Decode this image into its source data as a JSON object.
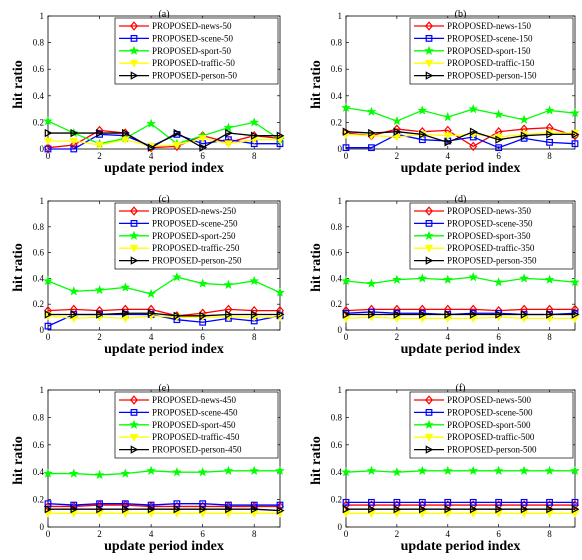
{
  "chart_data": [
    {
      "type": "line",
      "title": "(a)",
      "xlabel": "update period index",
      "ylabel": "hit ratio",
      "xlim": [
        0,
        9
      ],
      "ylim": [
        0,
        1
      ],
      "xticks": [
        0,
        2,
        4,
        6,
        8
      ],
      "yticks": [
        0,
        0.2,
        0.4,
        0.6,
        0.8,
        1
      ],
      "legend_position": "top-right",
      "x": [
        0,
        1,
        2,
        3,
        4,
        5,
        6,
        7,
        8,
        9
      ],
      "series": [
        {
          "name": "PROPOSED-news-50",
          "color": "#ff0000",
          "marker": "diamond",
          "values": [
            0.01,
            0.03,
            0.14,
            0.12,
            0.01,
            0.02,
            0.1,
            0.05,
            0.1,
            0.08
          ]
        },
        {
          "name": "PROPOSED-scene-50",
          "color": "#0000ff",
          "marker": "square",
          "values": [
            0.0,
            0.0,
            0.11,
            0.1,
            0.02,
            0.11,
            0.04,
            0.07,
            0.04,
            0.04
          ]
        },
        {
          "name": "PROPOSED-sport-50",
          "color": "#00ff00",
          "marker": "star",
          "values": [
            0.21,
            0.12,
            0.04,
            0.08,
            0.19,
            0.04,
            0.1,
            0.16,
            0.2,
            0.07
          ]
        },
        {
          "name": "PROPOSED-traffic-50",
          "color": "#ffff00",
          "marker": "triangle-down",
          "values": [
            0.06,
            0.06,
            0.03,
            0.07,
            0.02,
            0.03,
            0.08,
            0.04,
            0.07,
            0.07
          ]
        },
        {
          "name": "PROPOSED-person-50",
          "color": "#000000",
          "marker": "triangle-right",
          "values": [
            0.12,
            0.12,
            0.12,
            0.12,
            0.01,
            0.12,
            0.01,
            0.12,
            0.1,
            0.1
          ]
        }
      ]
    },
    {
      "type": "line",
      "title": "(b)",
      "xlabel": "update period index",
      "ylabel": "hit ratio",
      "xlim": [
        0,
        9
      ],
      "ylim": [
        0,
        1
      ],
      "xticks": [
        0,
        2,
        4,
        6,
        8
      ],
      "yticks": [
        0,
        0.2,
        0.4,
        0.6,
        0.8,
        1
      ],
      "legend_position": "top-right",
      "x": [
        0,
        1,
        2,
        3,
        4,
        5,
        6,
        7,
        8,
        9
      ],
      "series": [
        {
          "name": "PROPOSED-news-150",
          "color": "#ff0000",
          "marker": "diamond",
          "values": [
            0.12,
            0.1,
            0.15,
            0.13,
            0.14,
            0.02,
            0.13,
            0.15,
            0.16,
            0.1
          ]
        },
        {
          "name": "PROPOSED-scene-150",
          "color": "#0000ff",
          "marker": "square",
          "values": [
            0.01,
            0.01,
            0.11,
            0.07,
            0.06,
            0.09,
            0.01,
            0.08,
            0.05,
            0.04
          ]
        },
        {
          "name": "PROPOSED-sport-150",
          "color": "#00ff00",
          "marker": "star",
          "values": [
            0.31,
            0.28,
            0.21,
            0.29,
            0.24,
            0.3,
            0.26,
            0.22,
            0.29,
            0.27
          ]
        },
        {
          "name": "PROPOSED-traffic-150",
          "color": "#ffff00",
          "marker": "triangle-down",
          "values": [
            0.11,
            0.1,
            0.09,
            0.11,
            0.1,
            0.11,
            0.09,
            0.11,
            0.12,
            0.12
          ]
        },
        {
          "name": "PROPOSED-person-150",
          "color": "#000000",
          "marker": "triangle-right",
          "values": [
            0.13,
            0.12,
            0.13,
            0.11,
            0.05,
            0.13,
            0.07,
            0.1,
            0.11,
            0.11
          ]
        }
      ]
    },
    {
      "type": "line",
      "title": "(c)",
      "xlabel": "update period index",
      "ylabel": "hit ratio",
      "xlim": [
        0,
        9
      ],
      "ylim": [
        0,
        1
      ],
      "xticks": [
        0,
        2,
        4,
        6,
        8
      ],
      "yticks": [
        0,
        0.2,
        0.4,
        0.6,
        0.8,
        1
      ],
      "legend_position": "top-right",
      "x": [
        0,
        1,
        2,
        3,
        4,
        5,
        6,
        7,
        8,
        9
      ],
      "series": [
        {
          "name": "PROPOSED-news-250",
          "color": "#ff0000",
          "marker": "diamond",
          "values": [
            0.15,
            0.16,
            0.15,
            0.16,
            0.16,
            0.11,
            0.13,
            0.16,
            0.15,
            0.15
          ]
        },
        {
          "name": "PROPOSED-scene-250",
          "color": "#0000ff",
          "marker": "square",
          "values": [
            0.03,
            0.12,
            0.12,
            0.12,
            0.12,
            0.08,
            0.06,
            0.09,
            0.07,
            0.11
          ]
        },
        {
          "name": "PROPOSED-sport-250",
          "color": "#00ff00",
          "marker": "star",
          "values": [
            0.38,
            0.3,
            0.31,
            0.33,
            0.28,
            0.41,
            0.36,
            0.35,
            0.38,
            0.29
          ]
        },
        {
          "name": "PROPOSED-traffic-250",
          "color": "#ffff00",
          "marker": "triangle-down",
          "values": [
            0.11,
            0.09,
            0.1,
            0.09,
            0.11,
            0.1,
            0.1,
            0.1,
            0.1,
            0.1
          ]
        },
        {
          "name": "PROPOSED-person-250",
          "color": "#000000",
          "marker": "triangle-right",
          "values": [
            0.12,
            0.12,
            0.12,
            0.13,
            0.13,
            0.11,
            0.11,
            0.12,
            0.12,
            0.12
          ]
        }
      ]
    },
    {
      "type": "line",
      "title": "(d)",
      "xlabel": "update period index",
      "ylabel": "hit ratio",
      "xlim": [
        0,
        9
      ],
      "ylim": [
        0,
        1
      ],
      "xticks": [
        0,
        2,
        4,
        6,
        8
      ],
      "yticks": [
        0,
        0.2,
        0.4,
        0.6,
        0.8,
        1
      ],
      "legend_position": "top-right",
      "x": [
        0,
        1,
        2,
        3,
        4,
        5,
        6,
        7,
        8,
        9
      ],
      "series": [
        {
          "name": "PROPOSED-news-350",
          "color": "#ff0000",
          "marker": "diamond",
          "values": [
            0.15,
            0.16,
            0.16,
            0.16,
            0.16,
            0.16,
            0.15,
            0.16,
            0.16,
            0.16
          ]
        },
        {
          "name": "PROPOSED-scene-350",
          "color": "#0000ff",
          "marker": "square",
          "values": [
            0.13,
            0.14,
            0.13,
            0.13,
            0.12,
            0.13,
            0.13,
            0.12,
            0.12,
            0.13
          ]
        },
        {
          "name": "PROPOSED-sport-350",
          "color": "#00ff00",
          "marker": "star",
          "values": [
            0.38,
            0.36,
            0.39,
            0.4,
            0.39,
            0.41,
            0.37,
            0.4,
            0.39,
            0.37
          ]
        },
        {
          "name": "PROPOSED-traffic-350",
          "color": "#ffff00",
          "marker": "triangle-down",
          "values": [
            0.09,
            0.1,
            0.09,
            0.09,
            0.09,
            0.09,
            0.1,
            0.09,
            0.09,
            0.09
          ]
        },
        {
          "name": "PROPOSED-person-350",
          "color": "#000000",
          "marker": "triangle-right",
          "values": [
            0.12,
            0.12,
            0.12,
            0.12,
            0.12,
            0.12,
            0.12,
            0.12,
            0.12,
            0.12
          ]
        }
      ]
    },
    {
      "type": "line",
      "title": "(e)",
      "xlabel": "update period index",
      "ylabel": "hit ratio",
      "xlim": [
        0,
        9
      ],
      "ylim": [
        0,
        1
      ],
      "xticks": [
        0,
        2,
        4,
        6,
        8
      ],
      "yticks": [
        0,
        0.2,
        0.4,
        0.6,
        0.8,
        1
      ],
      "legend_position": "top-right",
      "x": [
        0,
        1,
        2,
        3,
        4,
        5,
        6,
        7,
        8,
        9
      ],
      "series": [
        {
          "name": "PROPOSED-news-450",
          "color": "#ff0000",
          "marker": "diamond",
          "values": [
            0.15,
            0.15,
            0.16,
            0.16,
            0.15,
            0.15,
            0.15,
            0.15,
            0.15,
            0.15
          ]
        },
        {
          "name": "PROPOSED-scene-450",
          "color": "#0000ff",
          "marker": "square",
          "values": [
            0.17,
            0.16,
            0.17,
            0.17,
            0.16,
            0.17,
            0.17,
            0.16,
            0.16,
            0.16
          ]
        },
        {
          "name": "PROPOSED-sport-450",
          "color": "#00ff00",
          "marker": "star",
          "values": [
            0.39,
            0.39,
            0.38,
            0.39,
            0.41,
            0.4,
            0.4,
            0.41,
            0.41,
            0.41
          ]
        },
        {
          "name": "PROPOSED-traffic-450",
          "color": "#ffff00",
          "marker": "triangle-down",
          "values": [
            0.1,
            0.1,
            0.1,
            0.1,
            0.1,
            0.1,
            0.1,
            0.1,
            0.1,
            0.1
          ]
        },
        {
          "name": "PROPOSED-person-450",
          "color": "#000000",
          "marker": "triangle-right",
          "values": [
            0.13,
            0.13,
            0.13,
            0.13,
            0.13,
            0.13,
            0.13,
            0.13,
            0.13,
            0.12
          ]
        }
      ]
    },
    {
      "type": "line",
      "title": "(f)",
      "xlabel": "update period index",
      "ylabel": "hit ratio",
      "xlim": [
        0,
        9
      ],
      "ylim": [
        0,
        1
      ],
      "xticks": [
        0,
        2,
        4,
        6,
        8
      ],
      "yticks": [
        0,
        0.2,
        0.4,
        0.6,
        0.8,
        1
      ],
      "legend_position": "top-right",
      "x": [
        0,
        1,
        2,
        3,
        4,
        5,
        6,
        7,
        8,
        9
      ],
      "series": [
        {
          "name": "PROPOSED-news-500",
          "color": "#ff0000",
          "marker": "diamond",
          "values": [
            0.16,
            0.16,
            0.16,
            0.16,
            0.16,
            0.16,
            0.16,
            0.16,
            0.16,
            0.16
          ]
        },
        {
          "name": "PROPOSED-scene-500",
          "color": "#0000ff",
          "marker": "square",
          "values": [
            0.18,
            0.18,
            0.18,
            0.18,
            0.18,
            0.18,
            0.18,
            0.18,
            0.18,
            0.18
          ]
        },
        {
          "name": "PROPOSED-sport-500",
          "color": "#00ff00",
          "marker": "star",
          "values": [
            0.4,
            0.41,
            0.4,
            0.41,
            0.41,
            0.41,
            0.41,
            0.41,
            0.41,
            0.41
          ]
        },
        {
          "name": "PROPOSED-traffic-500",
          "color": "#ffff00",
          "marker": "triangle-down",
          "values": [
            0.1,
            0.1,
            0.1,
            0.1,
            0.1,
            0.1,
            0.1,
            0.1,
            0.1,
            0.1
          ]
        },
        {
          "name": "PROPOSED-person-500",
          "color": "#000000",
          "marker": "triangle-right",
          "values": [
            0.13,
            0.13,
            0.13,
            0.13,
            0.13,
            0.13,
            0.13,
            0.13,
            0.13,
            0.13
          ]
        }
      ]
    }
  ]
}
